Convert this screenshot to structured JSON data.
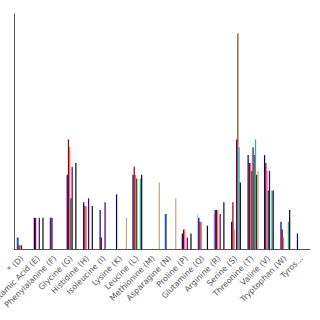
{
  "chart_data": {
    "type": "bar",
    "categories": [
      "* (D)",
      "Glutamic Acid (E)",
      "Phenylalanine (F)",
      "Glycine (G)",
      "Histidine (H)",
      "Isoleucine (I)",
      "Lysine (K)",
      "Leucine (L)",
      "Methionine (M)",
      "Asparagine (N)",
      "Proline (P)",
      "Glutamine (Q)",
      "Arginine (R)",
      "Serine (S)",
      "Threonine (T)",
      "Valine (V)",
      "Tryptophan (W)",
      "Tyros..."
    ],
    "series": [
      {
        "color": "#ADD8E6",
        "values": [
          0.03,
          0.0,
          0.08,
          0.0,
          0.0,
          0.0,
          0.0,
          0.0,
          0.0,
          0.09,
          0.0,
          0.09,
          0.09,
          0.0,
          0.0,
          0.0,
          0.0,
          0.0
        ]
      },
      {
        "color": "#00008B",
        "values": [
          0.03,
          0.08,
          0.08,
          0.19,
          0.12,
          0.1,
          0.14,
          0.19,
          0.0,
          0.09,
          0.04,
          0.08,
          0.1,
          0.07,
          0.24,
          0.24,
          0.07,
          0.04
        ]
      },
      {
        "color": "#8B0000",
        "values": [
          0.01,
          0.08,
          0.08,
          0.28,
          0.11,
          0.03,
          0.0,
          0.21,
          0.0,
          0.0,
          0.05,
          0.07,
          0.1,
          0.12,
          0.22,
          0.22,
          0.05,
          0.0
        ]
      },
      {
        "color": "#FF6666",
        "values": [
          0.01,
          0.0,
          0.0,
          0.26,
          0.11,
          0.0,
          0.0,
          0.19,
          0.0,
          0.0,
          0.05,
          0.07,
          0.1,
          0.05,
          0.22,
          0.2,
          0.03,
          0.0
        ]
      },
      {
        "color": "#006400",
        "values": [
          0.01,
          0.0,
          0.0,
          0.13,
          0.0,
          0.0,
          0.0,
          0.18,
          0.0,
          0.0,
          0.0,
          0.0,
          0.0,
          0.0,
          0.2,
          0.15,
          0.0,
          0.0
        ]
      },
      {
        "color": "#4B0082",
        "values": [
          0.0,
          0.08,
          0.0,
          0.21,
          0.13,
          0.12,
          0.0,
          0.0,
          0.0,
          0.0,
          0.03,
          0.0,
          0.09,
          0.28,
          0.26,
          0.2,
          0.0,
          0.0
        ]
      },
      {
        "color": "#8B4513",
        "values": [
          0.0,
          0.0,
          0.0,
          0.0,
          0.0,
          0.0,
          0.0,
          0.0,
          0.0,
          0.0,
          0.0,
          0.0,
          0.0,
          0.55,
          0.24,
          0.0,
          0.0,
          0.0
        ]
      },
      {
        "color": "#20B2AA",
        "values": [
          0.0,
          0.0,
          0.0,
          0.0,
          0.0,
          0.0,
          0.0,
          0.18,
          0.0,
          0.0,
          0.0,
          0.0,
          0.0,
          0.26,
          0.28,
          0.15,
          0.07,
          0.0
        ]
      },
      {
        "color": "#111111",
        "values": [
          0.0,
          0.08,
          0.0,
          0.22,
          0.11,
          0.0,
          0.0,
          0.19,
          0.0,
          0.0,
          0.04,
          0.06,
          0.12,
          0.17,
          0.19,
          0.15,
          0.1,
          0.0
        ]
      },
      {
        "color": "#C8A882",
        "values": [
          0.0,
          0.0,
          0.0,
          0.0,
          0.0,
          0.0,
          0.08,
          0.0,
          0.17,
          0.13,
          0.0,
          0.0,
          0.0,
          0.0,
          0.2,
          0.0,
          0.0,
          0.0
        ]
      }
    ],
    "ylim": [
      0,
      0.6
    ],
    "yticks": [],
    "tick_labels": "x",
    "grid": false
  }
}
